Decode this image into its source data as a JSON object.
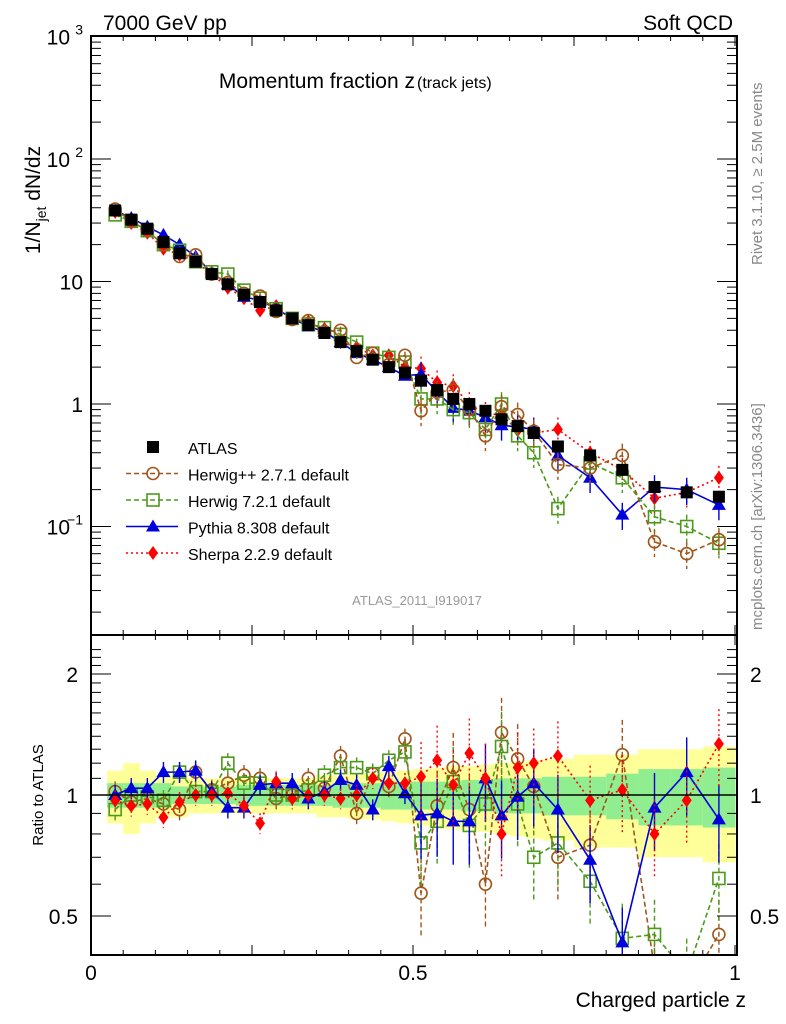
{
  "header": {
    "left_label": "7000 GeV pp",
    "right_label": "Soft QCD"
  },
  "side_labels": {
    "rivet": "Rivet 3.1.10, ≥ 2.5M events",
    "mcplots": "mcplots.cern.ch [arXiv:1306.3436]"
  },
  "colors": {
    "ATLAS": "#000000",
    "Herwig++": "#a0561a",
    "Herwig7": "#4c9a1a",
    "Pythia": "#0000dd",
    "Sherpa": "#ff0000",
    "band_inner": "#90ee90",
    "band_outer": "#ffff99"
  },
  "chart_data": [
    {
      "type": "scatter",
      "title": "Momentum fraction z",
      "title_suffix": "(track jets)",
      "xlabel": "Charged particle z",
      "ylabel": "1/N_jet dN/dz",
      "yscale": "log",
      "ylim": [
        0.02,
        1000
      ],
      "xlim": [
        0,
        1
      ],
      "yticks": [
        "10^-1",
        "1",
        "10",
        "10^2",
        "10^3"
      ],
      "analysis_label": "ATLAS_2011_I919017",
      "legend_position": "center-left",
      "x": [
        0.0375,
        0.0625,
        0.0875,
        0.1125,
        0.1375,
        0.1625,
        0.1875,
        0.2125,
        0.2375,
        0.2625,
        0.2875,
        0.3125,
        0.3375,
        0.3625,
        0.3875,
        0.4125,
        0.4375,
        0.4625,
        0.4875,
        0.5125,
        0.5375,
        0.5625,
        0.5875,
        0.6125,
        0.6375,
        0.6625,
        0.6875,
        0.725,
        0.775,
        0.825,
        0.875,
        0.925,
        0.975
      ],
      "series": [
        {
          "name": "ATLAS",
          "key": "ATLAS",
          "marker": "square-filled",
          "line": "none",
          "values": [
            38,
            32,
            27,
            21,
            17,
            14.5,
            11.5,
            9.5,
            7.8,
            6.8,
            5.8,
            5.0,
            4.4,
            3.8,
            3.2,
            2.7,
            2.3,
            2.0,
            1.8,
            1.55,
            1.3,
            1.1,
            1.0,
            0.88,
            0.75,
            0.66,
            0.58,
            0.45,
            0.38,
            0.29,
            0.21,
            0.19,
            0.175
          ]
        },
        {
          "name": "Herwig++ 2.7.1 default",
          "key": "Herwig++",
          "marker": "circle-open",
          "line": "dashed",
          "values": [
            39,
            31,
            26,
            20,
            16,
            16.5,
            11.5,
            9.8,
            8.0,
            7.6,
            5.7,
            4.9,
            4.8,
            3.9,
            4.0,
            2.4,
            2.6,
            2.1,
            2.5,
            0.88,
            1.25,
            1.3,
            0.9,
            0.55,
            0.95,
            0.82,
            0.6,
            0.32,
            0.3,
            0.38,
            0.075,
            0.06,
            0.078
          ]
        },
        {
          "name": "Herwig 7.2.1 default",
          "key": "Herwig7",
          "marker": "square-open",
          "line": "dashed",
          "values": [
            35,
            31,
            26,
            20,
            18,
            14.5,
            12,
            11.5,
            8.5,
            7.3,
            6.0,
            5.0,
            4.5,
            4.2,
            3.7,
            3.2,
            2.6,
            2.4,
            2.2,
            1.1,
            1.1,
            0.9,
            0.85,
            0.62,
            1.0,
            0.55,
            0.4,
            0.14,
            0.33,
            0.25,
            0.12,
            0.1,
            0.073
          ]
        },
        {
          "name": "Pythia 8.308 default",
          "key": "Pythia",
          "marker": "triangle-filled",
          "line": "solid",
          "values": [
            38,
            33,
            28,
            24,
            20,
            16,
            11.8,
            9.5,
            7.5,
            7.0,
            6.0,
            5.0,
            4.3,
            3.9,
            3.2,
            2.6,
            2.3,
            2.0,
            1.7,
            1.75,
            1.25,
            0.93,
            0.88,
            0.78,
            0.67,
            0.65,
            0.62,
            0.38,
            0.25,
            0.125,
            0.21,
            0.2,
            0.15
          ]
        },
        {
          "name": "Sherpa 2.2.9 default",
          "key": "Sherpa",
          "marker": "diamond-filled",
          "line": "dotted",
          "values": [
            37,
            30,
            25,
            18.5,
            16.5,
            14.5,
            11.5,
            8.9,
            7.3,
            5.8,
            6.3,
            4.9,
            4.7,
            4.1,
            3.2,
            2.9,
            2.5,
            2.5,
            2.0,
            1.95,
            1.5,
            1.4,
            1.0,
            0.83,
            0.82,
            0.61,
            0.58,
            0.62,
            0.4,
            0.29,
            0.17,
            0.19,
            0.25
          ]
        }
      ]
    },
    {
      "type": "scatter",
      "title": "",
      "xlabel": "Charged particle z",
      "ylabel": "Ratio to ATLAS",
      "yscale": "log",
      "ylim": [
        0.42,
        2.4
      ],
      "xlim": [
        0,
        1
      ],
      "yticks": [
        "0.5",
        "1",
        "2"
      ],
      "xticks": [
        "0",
        "0.5",
        "1"
      ],
      "reference_line": 1,
      "x": [
        0.0375,
        0.0625,
        0.0875,
        0.1125,
        0.1375,
        0.1625,
        0.1875,
        0.2125,
        0.2375,
        0.2625,
        0.2875,
        0.3125,
        0.3375,
        0.3625,
        0.3875,
        0.4125,
        0.4375,
        0.4625,
        0.4875,
        0.5125,
        0.5375,
        0.5625,
        0.5875,
        0.6125,
        0.6375,
        0.6625,
        0.6875,
        0.725,
        0.775,
        0.825,
        0.875,
        0.925,
        0.975
      ],
      "band_inner": [
        0.07,
        0.07,
        0.07,
        0.07,
        0.05,
        0.05,
        0.05,
        0.05,
        0.06,
        0.06,
        0.06,
        0.06,
        0.06,
        0.06,
        0.07,
        0.07,
        0.07,
        0.08,
        0.08,
        0.08,
        0.08,
        0.08,
        0.09,
        0.09,
        0.1,
        0.1,
        0.1,
        0.11,
        0.11,
        0.13,
        0.16,
        0.16,
        0.17
      ],
      "band_outer": [
        0.15,
        0.2,
        0.15,
        0.12,
        0.12,
        0.1,
        0.1,
        0.1,
        0.1,
        0.1,
        0.1,
        0.1,
        0.1,
        0.12,
        0.12,
        0.13,
        0.13,
        0.14,
        0.15,
        0.16,
        0.17,
        0.18,
        0.18,
        0.19,
        0.2,
        0.21,
        0.22,
        0.23,
        0.26,
        0.26,
        0.3,
        0.3,
        0.32
      ],
      "series": [
        {
          "name": "Herwig++ 2.7.1 default",
          "key": "Herwig++",
          "values": [
            1.02,
            0.96,
            0.98,
            0.95,
            0.92,
            1.14,
            1.03,
            1.07,
            1.12,
            1.1,
            0.98,
            1.0,
            1.1,
            1.04,
            1.25,
            0.9,
            1.13,
            1.05,
            1.38,
            0.57,
            0.94,
            1.17,
            0.92,
            0.6,
            1.43,
            1.23,
            1.05,
            0.7,
            0.75,
            1.26,
            0.37,
            0.33,
            0.45
          ]
        },
        {
          "name": "Herwig 7.2.1 default",
          "key": "Herwig7",
          "values": [
            0.92,
            1.0,
            0.99,
            0.97,
            1.14,
            1.02,
            1.02,
            1.2,
            1.07,
            1.07,
            1.0,
            1.0,
            1.03,
            1.12,
            1.17,
            1.17,
            1.13,
            1.22,
            1.28,
            0.76,
            0.86,
            1.08,
            0.84,
            0.95,
            1.32,
            0.95,
            0.7,
            0.76,
            0.61,
            0.44,
            0.45,
            0.36,
            0.62
          ]
        },
        {
          "name": "Pythia 8.308 default",
          "key": "Pythia",
          "values": [
            1.0,
            1.04,
            1.04,
            1.14,
            1.14,
            1.15,
            1.02,
            0.93,
            0.93,
            1.06,
            1.07,
            1.07,
            0.98,
            1.02,
            1.09,
            1.06,
            0.92,
            1.18,
            1.01,
            0.89,
            0.9,
            0.86,
            0.86,
            1.1,
            0.89,
            0.99,
            1.07,
            0.92,
            0.69,
            0.43,
            0.93,
            1.14,
            0.87
          ]
        },
        {
          "name": "Sherpa 2.2.9 default",
          "key": "Sherpa",
          "values": [
            0.97,
            0.94,
            0.95,
            0.88,
            0.96,
            1.0,
            1.0,
            1.01,
            0.94,
            0.85,
            1.08,
            0.98,
            1.0,
            1.0,
            0.98,
            1.0,
            1.1,
            1.07,
            1.07,
            1.11,
            1.22,
            1.06,
            1.27,
            1.1,
            0.8,
            1.17,
            1.2,
            1.25,
            0.97,
            1.03,
            0.8,
            0.97,
            1.34
          ]
        }
      ]
    }
  ]
}
